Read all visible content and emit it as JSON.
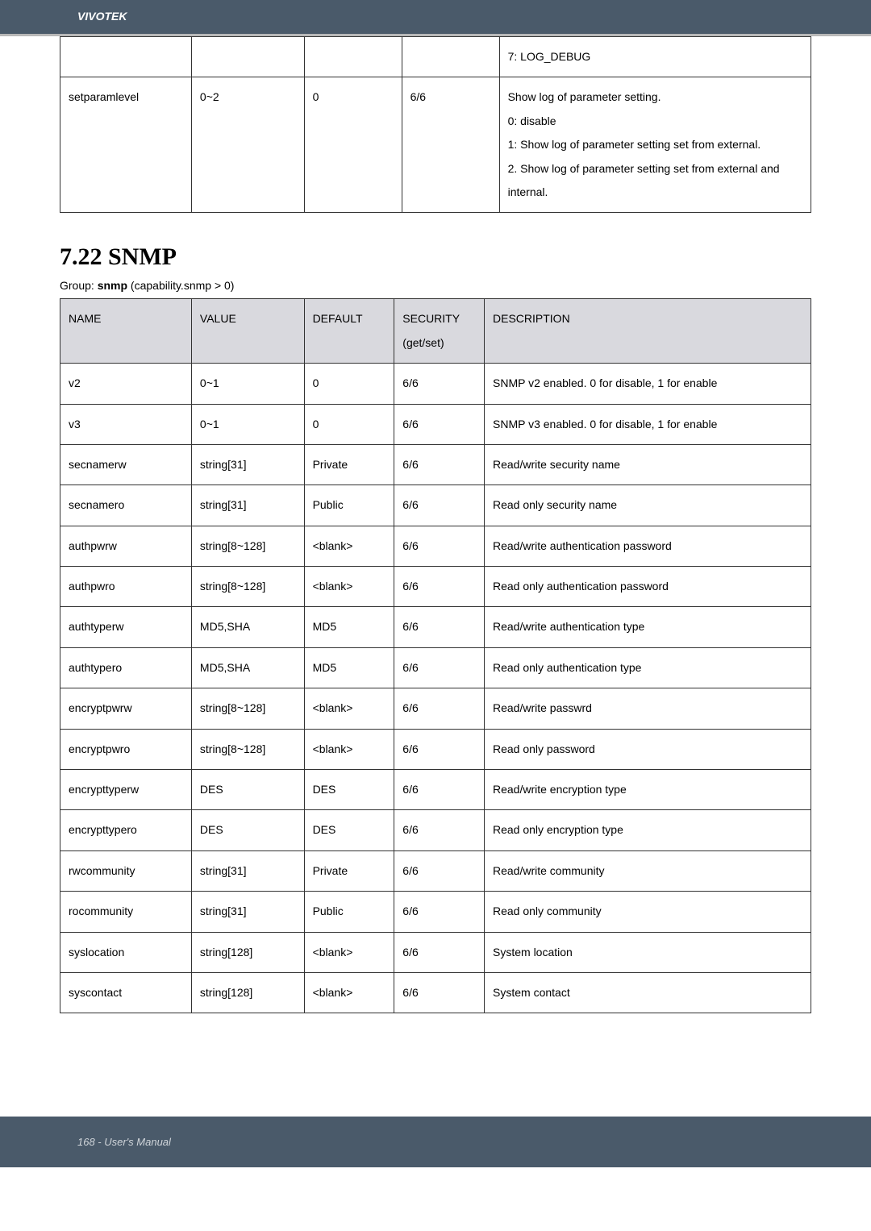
{
  "header": {
    "brand": "VIVOTEK"
  },
  "table1": {
    "rows": [
      {
        "c1": "",
        "c2": "",
        "c3": "",
        "c4": "",
        "c5": "7: LOG_DEBUG"
      },
      {
        "c1": "setparamlevel",
        "c2": "0~2",
        "c3": "0",
        "c4": "6/6",
        "c5": "Show log of parameter setting.\n0: disable\n1: Show log of parameter setting set from external.\n2. Show log of parameter setting set from external and internal."
      }
    ]
  },
  "section": {
    "title": "7.22 SNMP",
    "group_prefix": "Group: ",
    "group_bold": "snmp",
    "group_suffix": " (capability.snmp > 0)"
  },
  "table2": {
    "headers": {
      "name": "NAME",
      "value": "VALUE",
      "default": "DEFAULT",
      "security": "SECURITY (get/set)",
      "description": "DESCRIPTION"
    },
    "rows": [
      {
        "name": "v2",
        "value": "0~1",
        "default": "0",
        "security": "6/6",
        "description": "SNMP v2 enabled. 0 for disable, 1 for enable"
      },
      {
        "name": "v3",
        "value": "0~1",
        "default": "0",
        "security": "6/6",
        "description": "SNMP v3 enabled. 0 for disable, 1 for enable"
      },
      {
        "name": "secnamerw",
        "value": "string[31]",
        "default": "Private",
        "security": "6/6",
        "description": "Read/write security name"
      },
      {
        "name": "secnamero",
        "value": "string[31]",
        "default": "Public",
        "security": "6/6",
        "description": "Read only security name"
      },
      {
        "name": "authpwrw",
        "value": "string[8~128]",
        "default": "<blank>",
        "security": "6/6",
        "description": "Read/write authentication password"
      },
      {
        "name": "authpwro",
        "value": "string[8~128]",
        "default": "<blank>",
        "security": "6/6",
        "description": "Read only authentication password"
      },
      {
        "name": "authtyperw",
        "value": "MD5,SHA",
        "default": "MD5",
        "security": "6/6",
        "description": "Read/write authentication type"
      },
      {
        "name": "authtypero",
        "value": "MD5,SHA",
        "default": "MD5",
        "security": "6/6",
        "description": "Read only authentication type"
      },
      {
        "name": "encryptpwrw",
        "value": "string[8~128]",
        "default": "<blank>",
        "security": "6/6",
        "description": "Read/write passwrd"
      },
      {
        "name": "encryptpwro",
        "value": "string[8~128]",
        "default": "<blank>",
        "security": "6/6",
        "description": "Read only password"
      },
      {
        "name": "encrypttyperw",
        "value": "DES",
        "default": "DES",
        "security": "6/6",
        "description": "Read/write encryption type"
      },
      {
        "name": "encrypttypero",
        "value": "DES",
        "default": "DES",
        "security": "6/6",
        "description": "Read only encryption type"
      },
      {
        "name": "rwcommunity",
        "value": "string[31]",
        "default": "Private",
        "security": "6/6",
        "description": "Read/write community"
      },
      {
        "name": "rocommunity",
        "value": "string[31]",
        "default": "Public",
        "security": "6/6",
        "description": "Read only community"
      },
      {
        "name": "syslocation",
        "value": "string[128]",
        "default": "<blank>",
        "security": "6/6",
        "description": "System location"
      },
      {
        "name": "syscontact",
        "value": "string[128]",
        "default": "<blank>",
        "security": "6/6",
        "description": "System contact"
      }
    ]
  },
  "footer": {
    "text": "168 - User's Manual"
  }
}
